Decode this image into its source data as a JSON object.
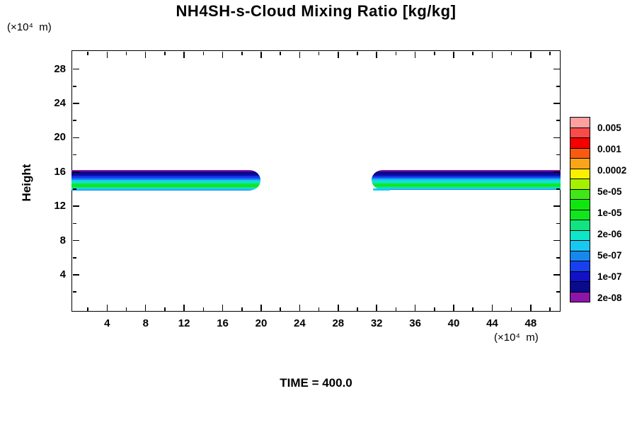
{
  "title": "NH4SH-s-Cloud Mixing Ratio [kg/kg]",
  "time_label": "TIME = 400.0",
  "y_axis": {
    "label": "Height",
    "unit_label": "(×10⁴  m)"
  },
  "x_axis": {
    "unit_label": "(×10⁴  m)"
  },
  "chart_data": {
    "type": "heatmap",
    "subtype": "filled-contour",
    "title": "NH4SH-s-Cloud Mixing Ratio [kg/kg]",
    "xlabel": "(×10⁴ m)",
    "ylabel": "Height (×10⁴ m)",
    "annotation": "TIME = 400.0",
    "grid": false,
    "xlim": [
      0.3,
      51.1
    ],
    "ylim": [
      -0.3,
      30.2
    ],
    "x_major_ticks": [
      4,
      8,
      12,
      16,
      20,
      24,
      28,
      32,
      36,
      40,
      44,
      48
    ],
    "x_minor_ticks": [
      2,
      6,
      10,
      14,
      18,
      22,
      26,
      30,
      34,
      38,
      42,
      46,
      50
    ],
    "y_major_ticks": [
      4,
      8,
      12,
      16,
      20,
      24,
      28
    ],
    "y_minor_ticks": [
      2,
      6,
      10,
      14,
      18,
      22,
      26
    ],
    "colorbar": {
      "position": "right",
      "labels": [
        "0.005",
        "0.001",
        "0.0002",
        "5e-05",
        "1e-05",
        "2e-06",
        "5e-07",
        "1e-07",
        "2e-08"
      ],
      "colors_top_to_bottom": [
        "#FFA0A0",
        "#FA4B4B",
        "#F40000",
        "#FA5A0F",
        "#FAA519",
        "#FAF000",
        "#A5F000",
        "#41E619",
        "#0FE60F",
        "#0FE61E",
        "#11E380",
        "#0FE6C9",
        "#19C8F0",
        "#1787F0",
        "#1740F0",
        "#1112C8",
        "#0A0A8C",
        "#8B16A9"
      ]
    },
    "bands": [
      {
        "name": "left-cloud-band",
        "x_range": [
          0.3,
          19.9
        ],
        "y_range": [
          13.85,
          16.2
        ],
        "tip": "right",
        "tail": false
      },
      {
        "name": "right-cloud-band",
        "x_range": [
          31.5,
          51.1
        ],
        "y_range": [
          13.9,
          16.25
        ],
        "tip": "left",
        "tail": true
      }
    ],
    "band_layers_top_to_bottom": [
      {
        "color": "#8B16A9",
        "weight": 7
      },
      {
        "color": "#0A0A8C",
        "weight": 17
      },
      {
        "color": "#1112C8",
        "weight": 7
      },
      {
        "color": "#1740F0",
        "weight": 9
      },
      {
        "color": "#1787F0",
        "weight": 7
      },
      {
        "color": "#19C8F0",
        "weight": 8
      },
      {
        "color": "#0FE6C9",
        "weight": 8
      },
      {
        "color": "#11E380",
        "weight": 7
      },
      {
        "color": "#0FE61E",
        "weight": 13
      },
      {
        "color": "#11E380",
        "weight": 5
      },
      {
        "color": "#0FE6C9",
        "weight": 4
      },
      {
        "color": "#19C8F0",
        "weight": 4
      },
      {
        "color": "#1787F0",
        "weight": 4
      }
    ]
  }
}
